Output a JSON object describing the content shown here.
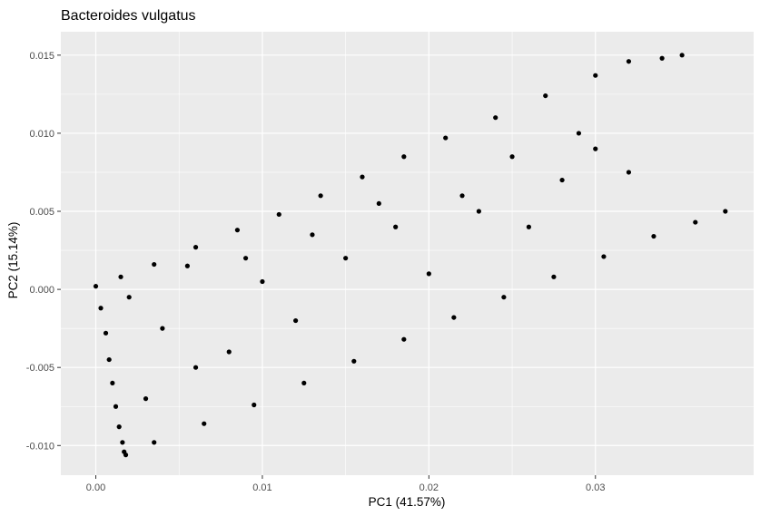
{
  "chart_data": {
    "type": "scatter",
    "title": "Bacteroides vulgatus",
    "xlabel": "PC1 (41.57%)",
    "ylabel": "PC2 (15.14%)",
    "xlim": [
      -0.0021,
      0.0395
    ],
    "ylim": [
      -0.0119,
      0.0165
    ],
    "x_ticks": [
      0.0,
      0.01,
      0.02,
      0.03
    ],
    "x_tick_labels": [
      "0.00",
      "0.01",
      "0.02",
      "0.03"
    ],
    "y_ticks": [
      -0.01,
      -0.005,
      0.0,
      0.005,
      0.01,
      0.015
    ],
    "y_tick_labels": [
      "-0.010",
      "-0.005",
      "0.000",
      "0.005",
      "0.010",
      "0.015"
    ],
    "grid": true,
    "panel_background": "#ebebeb",
    "grid_color": "#ffffff",
    "point_color": "#000000",
    "series": [
      {
        "points": [
          [
            0.0,
            0.0002
          ],
          [
            0.0003,
            -0.0012
          ],
          [
            0.0006,
            -0.0028
          ],
          [
            0.0008,
            -0.0045
          ],
          [
            0.001,
            -0.006
          ],
          [
            0.0012,
            -0.0075
          ],
          [
            0.0014,
            -0.0088
          ],
          [
            0.0016,
            -0.0098
          ],
          [
            0.0017,
            -0.0104
          ],
          [
            0.0018,
            -0.0106
          ],
          [
            0.0015,
            0.0008
          ],
          [
            0.0035,
            0.0016
          ],
          [
            0.006,
            0.0027
          ],
          [
            0.0085,
            0.0038
          ],
          [
            0.011,
            0.0048
          ],
          [
            0.0135,
            0.006
          ],
          [
            0.016,
            0.0072
          ],
          [
            0.0185,
            0.0085
          ],
          [
            0.021,
            0.0097
          ],
          [
            0.024,
            0.011
          ],
          [
            0.027,
            0.0124
          ],
          [
            0.03,
            0.0137
          ],
          [
            0.032,
            0.0146
          ],
          [
            0.034,
            0.0148
          ],
          [
            0.0352,
            0.015
          ],
          [
            0.0035,
            -0.0098
          ],
          [
            0.0065,
            -0.0086
          ],
          [
            0.0095,
            -0.0074
          ],
          [
            0.0125,
            -0.006
          ],
          [
            0.0155,
            -0.0046
          ],
          [
            0.0185,
            -0.0032
          ],
          [
            0.0215,
            -0.0018
          ],
          [
            0.0245,
            -0.0005
          ],
          [
            0.0275,
            0.0008
          ],
          [
            0.0305,
            0.0021
          ],
          [
            0.0335,
            0.0034
          ],
          [
            0.036,
            0.0043
          ],
          [
            0.0378,
            0.005
          ],
          [
            0.002,
            -0.0005
          ],
          [
            0.004,
            -0.0025
          ],
          [
            0.0055,
            0.0015
          ],
          [
            0.008,
            -0.004
          ],
          [
            0.01,
            0.0005
          ],
          [
            0.012,
            -0.002
          ],
          [
            0.015,
            0.002
          ],
          [
            0.018,
            0.004
          ],
          [
            0.02,
            0.001
          ],
          [
            0.023,
            0.005
          ],
          [
            0.026,
            0.004
          ],
          [
            0.028,
            0.007
          ],
          [
            0.029,
            0.01
          ],
          [
            0.03,
            0.009
          ],
          [
            0.032,
            0.0075
          ],
          [
            0.025,
            0.0085
          ],
          [
            0.022,
            0.006
          ],
          [
            0.006,
            -0.005
          ],
          [
            0.003,
            -0.007
          ],
          [
            0.009,
            0.002
          ],
          [
            0.013,
            0.0035
          ],
          [
            0.017,
            0.0055
          ]
        ]
      }
    ]
  }
}
